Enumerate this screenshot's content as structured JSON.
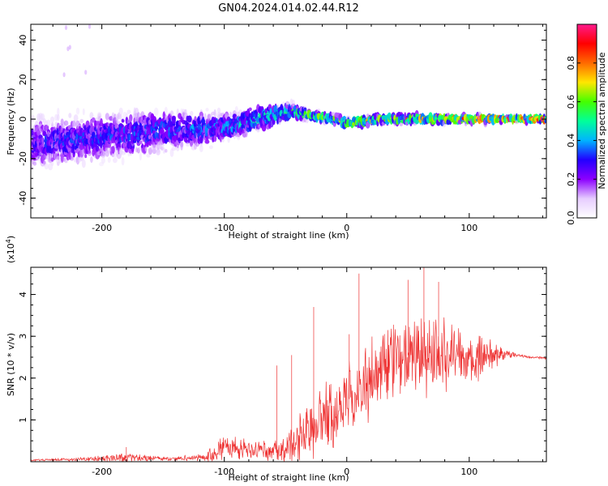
{
  "title": "GN04.2024.014.02.44.R12",
  "chart_data": [
    {
      "type": "heatmap",
      "title": "GN04.2024.014.02.44.R12",
      "xlabel": "Height of straight line (km)",
      "ylabel": "Frequency (Hz)",
      "xlim": [
        -258,
        163
      ],
      "ylim": [
        -50,
        48
      ],
      "x_ticks": [
        -200,
        -100,
        0,
        100
      ],
      "y_ticks": [
        -40,
        -20,
        0,
        20,
        40
      ],
      "colorbar": {
        "label": "Normalized spectral amplitude",
        "range": [
          0.0,
          1.0
        ],
        "ticks": [
          "0.0",
          "0.2",
          "0.4",
          "0.6",
          "0.8"
        ],
        "colors": [
          "#ffffff",
          "#e6ccff",
          "#8c00ff",
          "#2200ff",
          "#00b4ff",
          "#00ff9a",
          "#44ff00",
          "#ffe600",
          "#ff6a00",
          "#ff0000",
          "#ff1a8c"
        ]
      },
      "band_profile": {
        "x": [
          -258,
          -220,
          -180,
          -150,
          -120,
          -100,
          -80,
          -60,
          -45,
          -30,
          -10,
          0,
          30,
          60,
          100,
          130,
          163
        ],
        "center_hz": [
          -12,
          -10,
          -8,
          -6,
          -5,
          -4,
          -1,
          2,
          4,
          2,
          0,
          -2,
          0,
          0,
          0,
          0,
          0
        ],
        "spread_hz": [
          14,
          13,
          12,
          11,
          9,
          8,
          7,
          6,
          4,
          3,
          2.5,
          2.5,
          2.5,
          2.5,
          2,
          1.5,
          1.5
        ],
        "peak_amplitude": [
          0.28,
          0.3,
          0.32,
          0.34,
          0.36,
          0.38,
          0.42,
          0.46,
          0.5,
          0.55,
          0.62,
          0.66,
          0.68,
          0.72,
          0.78,
          0.85,
          0.9
        ]
      }
    },
    {
      "type": "line",
      "xlabel": "Height of straight line (km)",
      "ylabel": "SNR (10 * v/v)",
      "y_multiplier": "(x10",
      "y_multiplier_exp": "4",
      "y_multiplier_close": ")",
      "xlim": [
        -258,
        163
      ],
      "ylim": [
        0,
        4.65
      ],
      "x_ticks": [
        -200,
        -100,
        0,
        100
      ],
      "y_ticks": [
        1,
        2,
        3,
        4
      ],
      "series": [
        {
          "color": "#ee3333",
          "envelope": {
            "x": [
              -258,
              -230,
              -200,
              -180,
              -160,
              -140,
              -120,
              -110,
              -100,
              -90,
              -80,
              -70,
              -60,
              -50,
              -40,
              -30,
              -20,
              -10,
              0,
              10,
              20,
              30,
              40,
              50,
              60,
              70,
              80,
              90,
              100,
              110,
              120,
              130,
              140,
              150,
              163
            ],
            "mean": [
              0.04,
              0.05,
              0.07,
              0.09,
              0.08,
              0.07,
              0.1,
              0.2,
              0.32,
              0.35,
              0.3,
              0.28,
              0.25,
              0.3,
              0.45,
              0.7,
              1.0,
              1.2,
              1.45,
              1.7,
              2.0,
              2.25,
              2.45,
              2.55,
              2.6,
              2.6,
              2.55,
              2.55,
              2.5,
              2.5,
              2.55,
              2.6,
              2.55,
              2.5,
              2.48
            ],
            "spread": [
              0.03,
              0.04,
              0.08,
              0.15,
              0.08,
              0.06,
              0.1,
              0.25,
              0.4,
              0.35,
              0.3,
              0.28,
              0.3,
              0.5,
              0.7,
              0.9,
              1.0,
              1.0,
              0.95,
              1.0,
              1.05,
              1.1,
              1.2,
              1.25,
              1.3,
              1.2,
              1.1,
              0.9,
              0.7,
              0.55,
              0.35,
              0.15,
              0.07,
              0.04,
              0.03
            ]
          },
          "peaks": [
            {
              "x": 63,
              "y": 4.65
            },
            {
              "x": 10,
              "y": 4.5
            },
            {
              "x": 50,
              "y": 4.35
            },
            {
              "x": 75,
              "y": 4.3
            },
            {
              "x": -27,
              "y": 3.7
            },
            {
              "x": 2,
              "y": 3.05
            },
            {
              "x": -45,
              "y": 2.55
            },
            {
              "x": -57,
              "y": 2.3
            },
            {
              "x": -180,
              "y": 0.35
            }
          ]
        }
      ]
    }
  ]
}
